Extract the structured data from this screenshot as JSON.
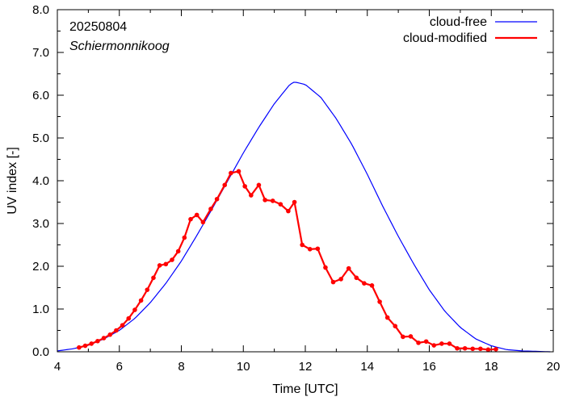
{
  "chart_data": {
    "type": "line",
    "annotations": {
      "date": "20250804",
      "location": "Schiermonnikoog"
    },
    "xlabel": "Time  [UTC]",
    "ylabel": "UV index  [-]",
    "xlim": [
      4,
      20
    ],
    "ylim": [
      0,
      8
    ],
    "x_ticks": [
      4,
      6,
      8,
      10,
      12,
      14,
      16,
      18,
      20
    ],
    "x_tick_labels": [
      "4",
      "6",
      "8",
      "10",
      "12",
      "14",
      "16",
      "18",
      "20"
    ],
    "y_ticks": [
      0,
      1,
      2,
      3,
      4,
      5,
      6,
      7,
      8
    ],
    "y_tick_labels": [
      "0.0",
      "1.0",
      "2.0",
      "3.0",
      "4.0",
      "5.0",
      "6.0",
      "7.0",
      "8.0"
    ],
    "legend_position": "top-right",
    "grid": false,
    "series": [
      {
        "name": "cloud-free",
        "color": "#0000ff",
        "markers": false,
        "x": [
          4.0,
          4.5,
          5.0,
          5.5,
          6.0,
          6.5,
          7.0,
          7.5,
          8.0,
          8.5,
          9.0,
          9.5,
          10.0,
          10.5,
          11.0,
          11.5,
          11.65,
          12.0,
          12.5,
          13.0,
          13.5,
          14.0,
          14.5,
          15.0,
          15.5,
          16.0,
          16.5,
          17.0,
          17.5,
          18.0,
          18.5,
          19.0,
          19.5,
          19.9
        ],
        "y": [
          0.02,
          0.07,
          0.15,
          0.3,
          0.5,
          0.78,
          1.15,
          1.6,
          2.12,
          2.72,
          3.35,
          4.0,
          4.65,
          5.25,
          5.8,
          6.25,
          6.31,
          6.25,
          5.95,
          5.45,
          4.85,
          4.15,
          3.4,
          2.7,
          2.05,
          1.45,
          0.95,
          0.57,
          0.3,
          0.14,
          0.05,
          0.02,
          0.01,
          0.0
        ]
      },
      {
        "name": "cloud-modified",
        "color": "#ff0000",
        "markers": true,
        "x": [
          4.7,
          4.9,
          5.1,
          5.3,
          5.5,
          5.7,
          5.9,
          6.1,
          6.3,
          6.5,
          6.7,
          6.9,
          7.1,
          7.3,
          7.5,
          7.7,
          7.9,
          8.1,
          8.3,
          8.5,
          8.7,
          8.95,
          9.15,
          9.4,
          9.6,
          9.85,
          10.05,
          10.25,
          10.5,
          10.7,
          10.95,
          11.2,
          11.45,
          11.65,
          11.9,
          12.15,
          12.4,
          12.65,
          12.9,
          13.15,
          13.4,
          13.65,
          13.9,
          14.15,
          14.4,
          14.65,
          14.9,
          15.15,
          15.4,
          15.65,
          15.9,
          16.15,
          16.4,
          16.65,
          16.9,
          17.15,
          17.4,
          17.65,
          17.9,
          18.15
        ],
        "y": [
          0.1,
          0.14,
          0.19,
          0.25,
          0.32,
          0.4,
          0.5,
          0.62,
          0.78,
          0.98,
          1.2,
          1.45,
          1.73,
          2.02,
          2.05,
          2.15,
          2.35,
          2.67,
          3.1,
          3.2,
          3.03,
          3.34,
          3.57,
          3.9,
          4.18,
          4.22,
          3.87,
          3.66,
          3.9,
          3.55,
          3.53,
          3.45,
          3.29,
          3.5,
          2.5,
          2.4,
          2.41,
          1.97,
          1.63,
          1.7,
          1.95,
          1.73,
          1.6,
          1.55,
          1.17,
          0.8,
          0.6,
          0.35,
          0.36,
          0.21,
          0.24,
          0.15,
          0.19,
          0.19,
          0.08,
          0.08,
          0.07,
          0.07,
          0.05,
          0.06
        ]
      }
    ]
  }
}
